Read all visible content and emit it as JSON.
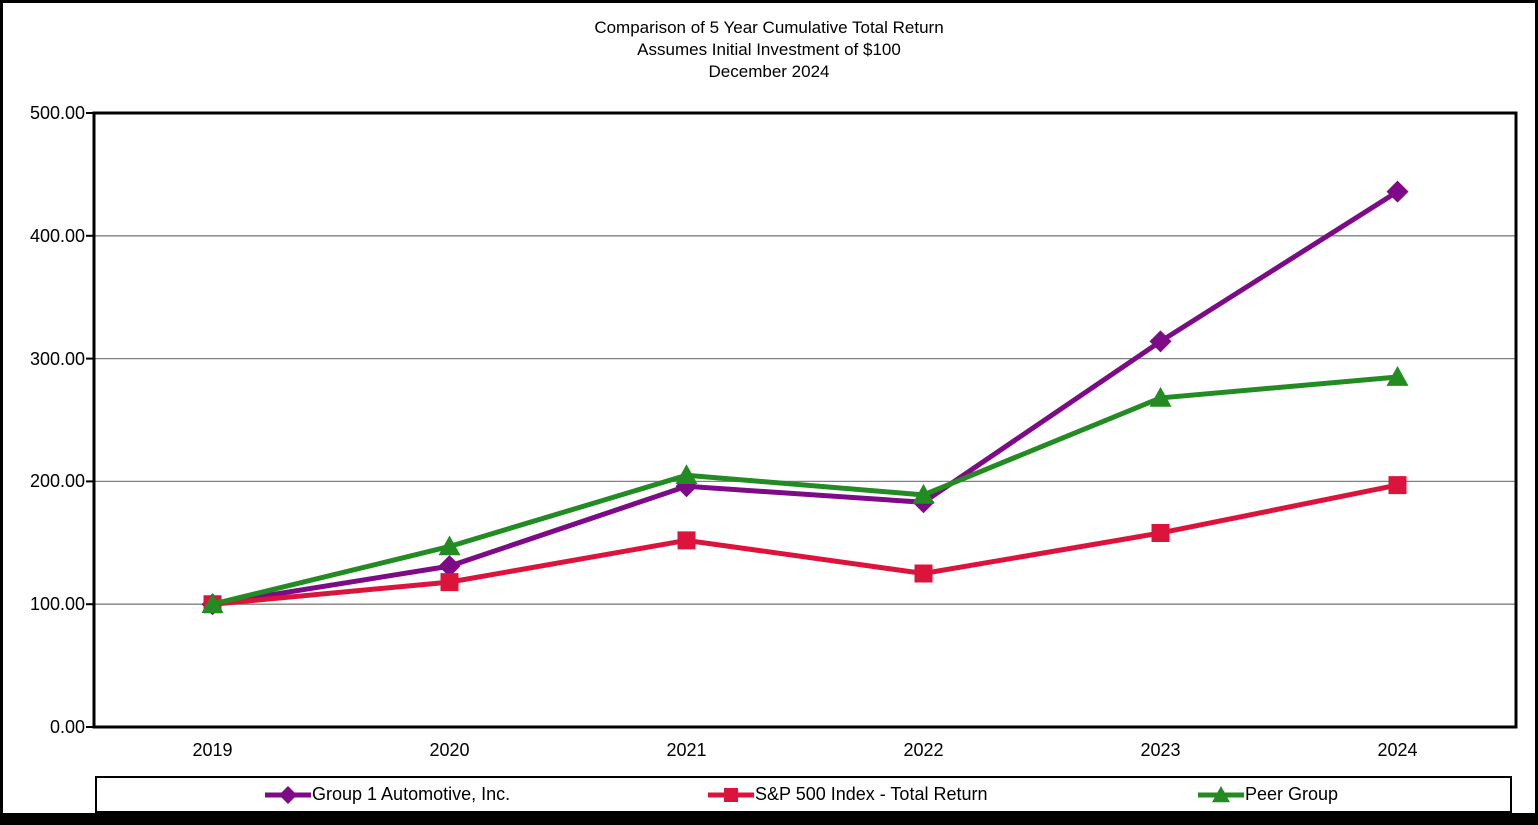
{
  "title": {
    "line1": "Comparison of 5 Year Cumulative Total Return",
    "line2": "Assumes Initial Investment of $100",
    "line3": "December 2024"
  },
  "chart_data": {
    "type": "line",
    "categories": [
      "2019",
      "2020",
      "2021",
      "2022",
      "2023",
      "2024"
    ],
    "series": [
      {
        "name": "Group 1 Automotive, Inc.",
        "color": "#7D0A87",
        "marker": "diamond",
        "values": [
          100,
          131,
          196,
          183,
          314,
          436
        ]
      },
      {
        "name": "S&P 500 Index - Total Return",
        "color": "#DC143C",
        "marker": "square",
        "values": [
          100,
          118,
          152,
          125,
          158,
          197
        ]
      },
      {
        "name": "Peer Group",
        "color": "#228B22",
        "marker": "triangle",
        "values": [
          100,
          147,
          205,
          189,
          268,
          285
        ]
      }
    ],
    "ylim": [
      0,
      500
    ],
    "y_tick_labels": [
      "0.00",
      "100.00",
      "200.00",
      "300.00",
      "400.00",
      "500.00"
    ],
    "y_tick_values": [
      0,
      100,
      200,
      300,
      400,
      500
    ],
    "grid": "horizontal",
    "gridline_color": "#808080",
    "axis_color": "#000000",
    "legend_position": "bottom"
  }
}
